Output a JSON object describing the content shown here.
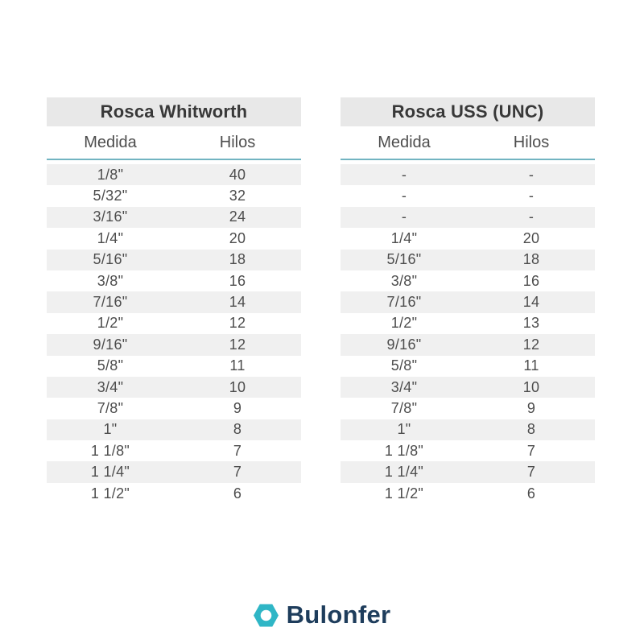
{
  "tables": [
    {
      "title": "Rosca Whitworth",
      "columns": [
        "Medida",
        "Hilos"
      ],
      "rows": [
        [
          "1/8\"",
          "40"
        ],
        [
          "5/32\"",
          "32"
        ],
        [
          "3/16\"",
          "24"
        ],
        [
          "1/4\"",
          "20"
        ],
        [
          "5/16\"",
          "18"
        ],
        [
          "3/8\"",
          "16"
        ],
        [
          "7/16\"",
          "14"
        ],
        [
          "1/2\"",
          "12"
        ],
        [
          "9/16\"",
          "12"
        ],
        [
          "5/8\"",
          "11"
        ],
        [
          "3/4\"",
          "10"
        ],
        [
          "7/8\"",
          "9"
        ],
        [
          "1\"",
          "8"
        ],
        [
          "1 1/8\"",
          "7"
        ],
        [
          "1 1/4\"",
          "7"
        ],
        [
          "1 1/2\"",
          "6"
        ]
      ]
    },
    {
      "title": "Rosca USS (UNC)",
      "columns": [
        "Medida",
        "Hilos"
      ],
      "rows": [
        [
          "-",
          "-"
        ],
        [
          "-",
          "-"
        ],
        [
          "-",
          "-"
        ],
        [
          "1/4\"",
          "20"
        ],
        [
          "5/16\"",
          "18"
        ],
        [
          "3/8\"",
          "16"
        ],
        [
          "7/16\"",
          "14"
        ],
        [
          "1/2\"",
          "13"
        ],
        [
          "9/16\"",
          "12"
        ],
        [
          "5/8\"",
          "11"
        ],
        [
          "3/4\"",
          "10"
        ],
        [
          "7/8\"",
          "9"
        ],
        [
          "1\"",
          "8"
        ],
        [
          "1 1/8\"",
          "7"
        ],
        [
          "1 1/4\"",
          "7"
        ],
        [
          "1 1/2\"",
          "6"
        ]
      ]
    }
  ],
  "chart_data": [
    {
      "type": "table",
      "title": "Rosca Whitworth",
      "columns": [
        "Medida",
        "Hilos"
      ],
      "rows": [
        [
          "1/8\"",
          40
        ],
        [
          "5/32\"",
          32
        ],
        [
          "3/16\"",
          24
        ],
        [
          "1/4\"",
          20
        ],
        [
          "5/16\"",
          18
        ],
        [
          "3/8\"",
          16
        ],
        [
          "7/16\"",
          14
        ],
        [
          "1/2\"",
          12
        ],
        [
          "9/16\"",
          12
        ],
        [
          "5/8\"",
          11
        ],
        [
          "3/4\"",
          10
        ],
        [
          "7/8\"",
          9
        ],
        [
          "1\"",
          8
        ],
        [
          "1 1/8\"",
          7
        ],
        [
          "1 1/4\"",
          7
        ],
        [
          "1 1/2\"",
          6
        ]
      ]
    },
    {
      "type": "table",
      "title": "Rosca USS (UNC)",
      "columns": [
        "Medida",
        "Hilos"
      ],
      "rows": [
        [
          "-",
          null
        ],
        [
          "-",
          null
        ],
        [
          "-",
          null
        ],
        [
          "1/4\"",
          20
        ],
        [
          "5/16\"",
          18
        ],
        [
          "3/8\"",
          16
        ],
        [
          "7/16\"",
          14
        ],
        [
          "1/2\"",
          13
        ],
        [
          "9/16\"",
          12
        ],
        [
          "5/8\"",
          11
        ],
        [
          "3/4\"",
          10
        ],
        [
          "7/8\"",
          9
        ],
        [
          "1\"",
          8
        ],
        [
          "1 1/8\"",
          7
        ],
        [
          "1 1/4\"",
          7
        ],
        [
          "1 1/2\"",
          6
        ]
      ]
    }
  ],
  "footer": {
    "brand": "Bulonfer",
    "logo_icon": "hex-nut-icon"
  },
  "colors": {
    "background": "#ffffff",
    "title_band_bg": "#e8e8e8",
    "row_stripe_bg": "#f0f0f0",
    "header_underline": "#72b4c1",
    "title_text": "#383838",
    "table_text": "#4d4d4d",
    "logo_teal": "#2fb6c6",
    "logo_navy": "#1e3d5c"
  }
}
